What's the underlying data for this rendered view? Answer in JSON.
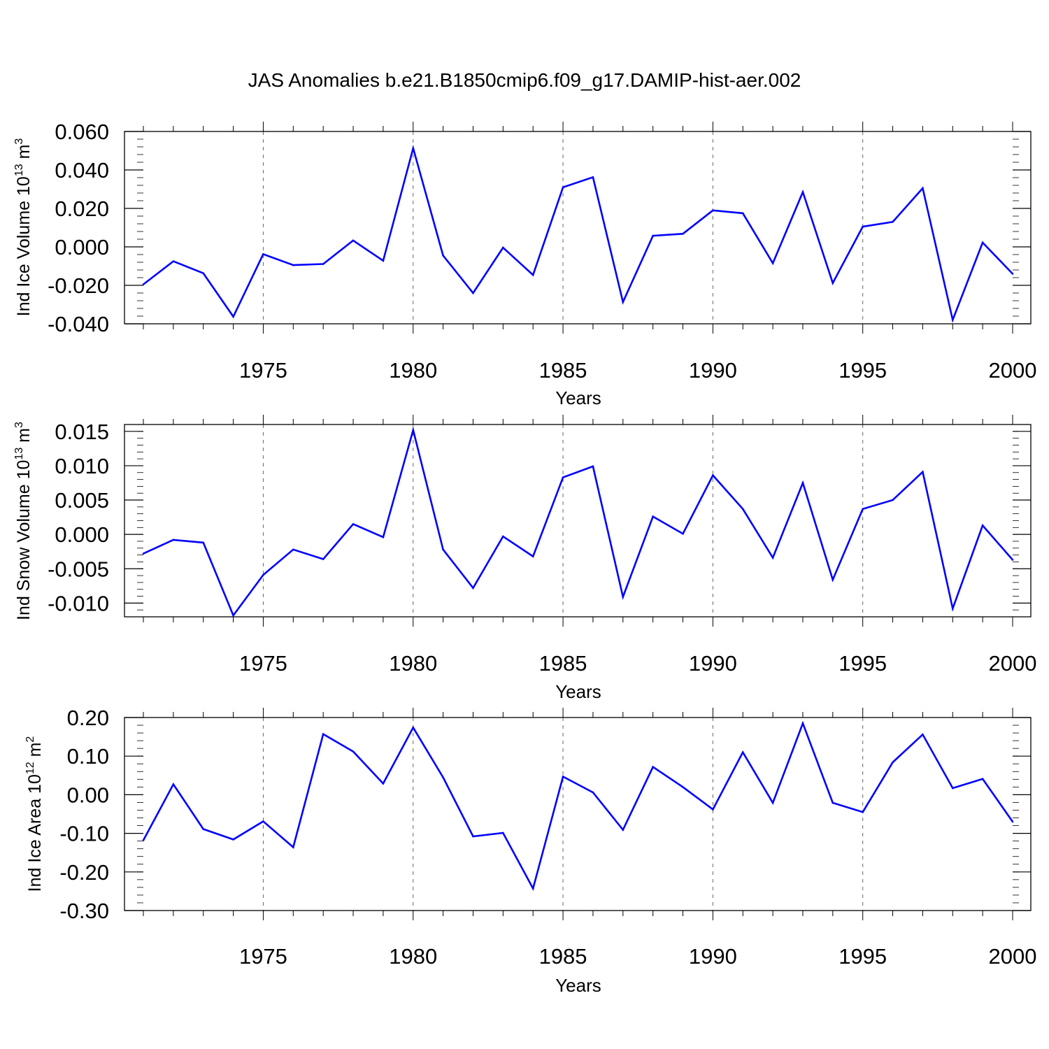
{
  "figure": {
    "title": "JAS Anomalies b.e21.B1850cmip6.f09_g17.DAMIP-hist-aer.002"
  },
  "colors": {
    "line": "#0000ff",
    "axis": "#000000",
    "grid": "#666666",
    "background": "#ffffff"
  },
  "chart_data": [
    {
      "type": "line",
      "ylabel": {
        "text": "Ind Ice Volume 10",
        "exp": "13",
        "unit": " m",
        "unit_exp": "3"
      },
      "xlabel": "Years",
      "xlim": [
        1971,
        2000
      ],
      "ylim": [
        -0.04,
        0.06
      ],
      "x_ticks": [
        1975,
        1980,
        1985,
        1990,
        1995,
        2000
      ],
      "y_ticks": [
        0.06,
        0.04,
        0.02,
        0.0,
        -0.02,
        -0.04
      ],
      "y_tick_labels": [
        "0.060",
        "0.040",
        "0.020",
        "0.000",
        "-0.020",
        "-0.040"
      ],
      "y_minor_step": 0.004,
      "grid": "vertical dashed at major x ticks",
      "x": [
        1971,
        1972,
        1973,
        1974,
        1975,
        1976,
        1977,
        1978,
        1979,
        1980,
        1981,
        1982,
        1983,
        1984,
        1985,
        1986,
        1987,
        1988,
        1989,
        1990,
        1991,
        1992,
        1993,
        1994,
        1995,
        1996,
        1997,
        1998,
        1999,
        2000
      ],
      "y": [
        -0.0195,
        -0.0075,
        -0.0137,
        -0.0363,
        -0.0038,
        -0.0095,
        -0.0089,
        0.0033,
        -0.0072,
        0.0513,
        -0.0045,
        -0.024,
        -0.0004,
        -0.0146,
        0.031,
        0.0362,
        -0.0287,
        0.0058,
        0.0068,
        0.019,
        0.0175,
        -0.0085,
        0.0285,
        -0.0188,
        0.0105,
        0.013,
        0.0305,
        -0.038,
        0.0022,
        -0.014
      ]
    },
    {
      "type": "line",
      "ylabel": {
        "text": "Ind Snow Volume 10",
        "exp": "13",
        "unit": " m",
        "unit_exp": "3"
      },
      "xlabel": "Years",
      "xlim": [
        1971,
        2000
      ],
      "ylim": [
        -0.012,
        0.016
      ],
      "x_ticks": [
        1975,
        1980,
        1985,
        1990,
        1995,
        2000
      ],
      "y_ticks": [
        0.015,
        0.01,
        0.005,
        0.0,
        -0.005,
        -0.01
      ],
      "y_tick_labels": [
        "0.015",
        "0.010",
        "0.005",
        "0.000",
        "-0.005",
        "-0.010"
      ],
      "y_minor_step": 0.001,
      "grid": "vertical dashed at major x ticks",
      "x": [
        1971,
        1972,
        1973,
        1974,
        1975,
        1976,
        1977,
        1978,
        1979,
        1980,
        1981,
        1982,
        1983,
        1984,
        1985,
        1986,
        1987,
        1988,
        1989,
        1990,
        1991,
        1992,
        1993,
        1994,
        1995,
        1996,
        1997,
        1998,
        1999,
        2000
      ],
      "y": [
        -0.0028,
        -0.0008,
        -0.0012,
        -0.0118,
        -0.0059,
        -0.0022,
        -0.0036,
        0.0015,
        -0.0004,
        0.0152,
        -0.0022,
        -0.0078,
        -0.0003,
        -0.0032,
        0.0083,
        0.0099,
        -0.0091,
        0.0026,
        0.0001,
        0.0086,
        0.0037,
        -0.0034,
        0.0075,
        -0.0066,
        0.0037,
        0.005,
        0.0091,
        -0.0108,
        0.0013,
        -0.0037
      ]
    },
    {
      "type": "line",
      "ylabel": {
        "text": "Ind Ice Area 10",
        "exp": "12",
        "unit": " m",
        "unit_exp": "2"
      },
      "xlabel": "Years",
      "xlim": [
        1971,
        2000
      ],
      "ylim": [
        -0.3,
        0.2
      ],
      "x_ticks": [
        1975,
        1980,
        1985,
        1990,
        1995,
        2000
      ],
      "y_ticks": [
        0.2,
        0.1,
        0.0,
        -0.1,
        -0.2,
        -0.3
      ],
      "y_tick_labels": [
        "0.20",
        "0.10",
        "0.00",
        "-0.10",
        "-0.20",
        "-0.30"
      ],
      "y_minor_step": 0.02,
      "grid": "vertical dashed at major x ticks",
      "x": [
        1971,
        1972,
        1973,
        1974,
        1975,
        1976,
        1977,
        1978,
        1979,
        1980,
        1981,
        1982,
        1983,
        1984,
        1985,
        1986,
        1987,
        1988,
        1989,
        1990,
        1991,
        1992,
        1993,
        1994,
        1995,
        1996,
        1997,
        1998,
        1999,
        2000
      ],
      "y": [
        -0.118,
        0.027,
        -0.089,
        -0.116,
        -0.069,
        -0.136,
        0.157,
        0.112,
        0.029,
        0.174,
        0.045,
        -0.108,
        -0.099,
        -0.243,
        0.047,
        0.006,
        -0.091,
        0.072,
        0.02,
        -0.038,
        0.11,
        -0.021,
        0.185,
        -0.021,
        -0.045,
        0.084,
        0.156,
        0.017,
        0.041,
        -0.07
      ]
    }
  ]
}
